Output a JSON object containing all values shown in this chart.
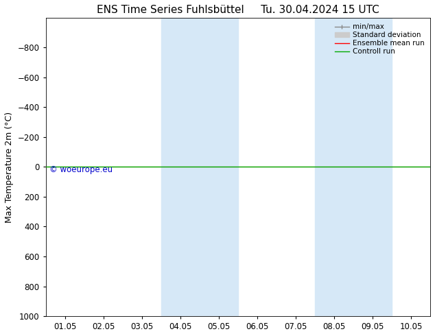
{
  "title_left": "ENS Time Series Fuhlsbüttel",
  "title_right": "Tu. 30.04.2024 15 UTC",
  "ylabel": "Max Temperature 2m (°C)",
  "ylim": [
    -1000,
    1000
  ],
  "yticks": [
    -800,
    -600,
    -400,
    -200,
    0,
    200,
    400,
    600,
    800,
    1000
  ],
  "xlim": [
    0,
    10
  ],
  "xtick_labels": [
    "01.05",
    "02.05",
    "03.05",
    "04.05",
    "05.05",
    "06.05",
    "07.05",
    "08.05",
    "09.05",
    "10.05"
  ],
  "xtick_positions": [
    0.5,
    1.5,
    2.5,
    3.5,
    4.5,
    5.5,
    6.5,
    7.5,
    8.5,
    9.5
  ],
  "shaded_regions": [
    {
      "start": 3.0,
      "end": 4.0
    },
    {
      "start": 4.0,
      "end": 5.0
    },
    {
      "start": 7.0,
      "end": 8.0
    },
    {
      "start": 8.0,
      "end": 9.0
    }
  ],
  "shade_color": "#d6e8f7",
  "control_run_color": "#00aa00",
  "ensemble_mean_color": "#ff0000",
  "minmax_color": "#888888",
  "std_dev_color": "#cccccc",
  "watermark": "© woeurope.eu",
  "watermark_color": "#0000cc",
  "background_color": "#ffffff",
  "legend_items": [
    "min/max",
    "Standard deviation",
    "Ensemble mean run",
    "Controll run"
  ],
  "legend_colors": [
    "#888888",
    "#cccccc",
    "#ff0000",
    "#00aa00"
  ],
  "title_fontsize": 11,
  "axis_fontsize": 9,
  "tick_fontsize": 8.5
}
